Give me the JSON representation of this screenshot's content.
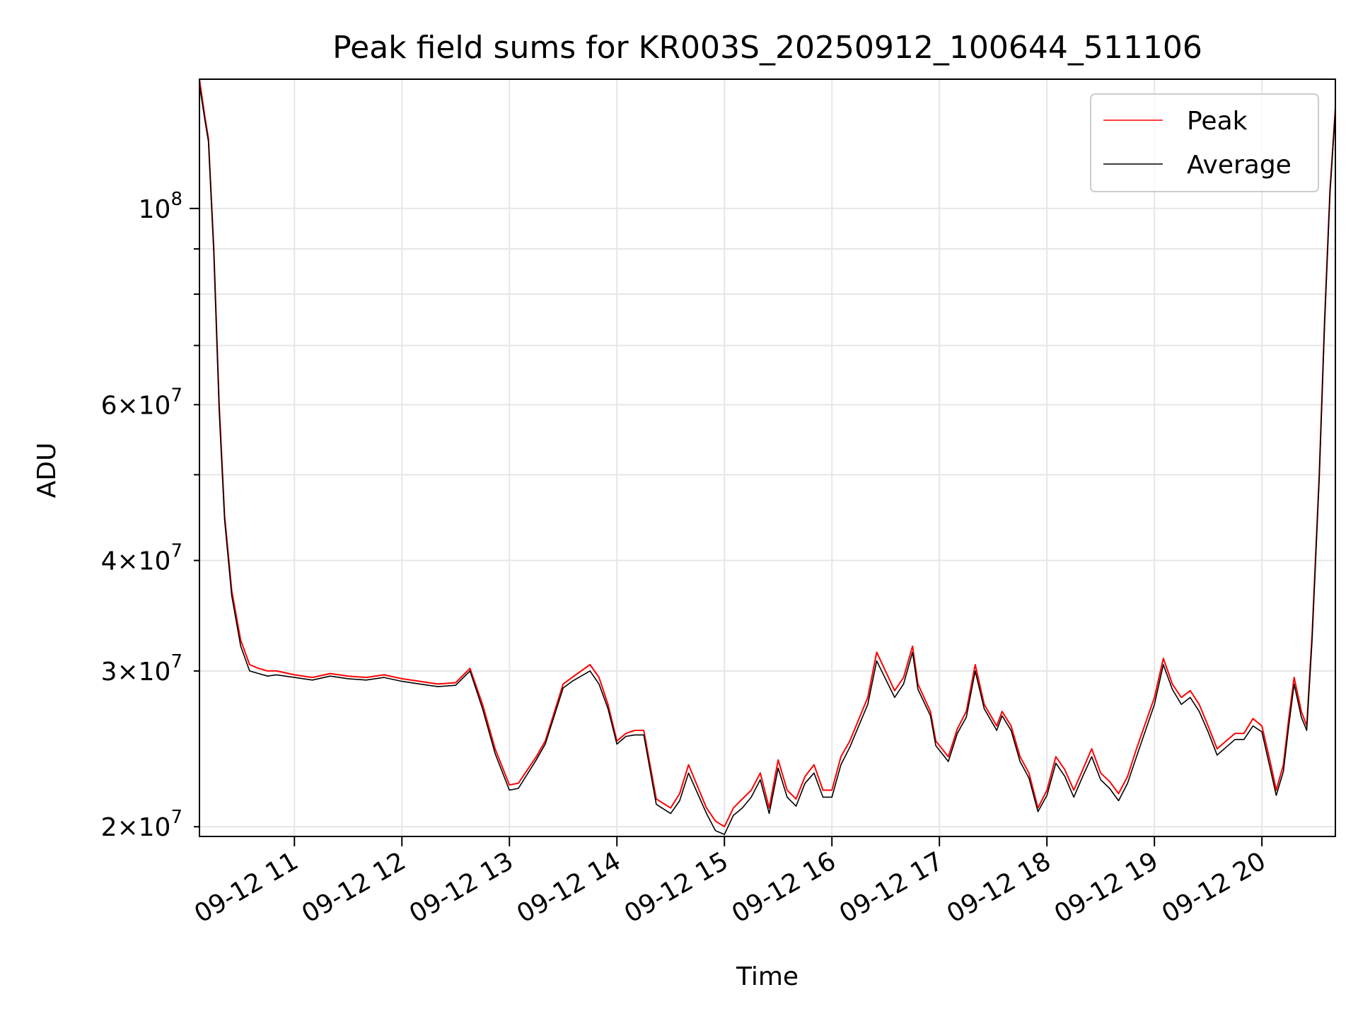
{
  "chart_data": {
    "type": "line",
    "title": "Peak field sums for KR003S_20250912_100644_511106",
    "xlabel": "Time",
    "ylabel": "ADU",
    "yscale": "log",
    "xlim": [
      "09-12 10:07",
      "09-12 20:41"
    ],
    "ylim": [
      19500000,
      140000000
    ],
    "grid": true,
    "legend_position": "top-right",
    "x_ticks": [
      {
        "label": "09-12 11",
        "x": "09-12 11:00"
      },
      {
        "label": "09-12 12",
        "x": "09-12 12:00"
      },
      {
        "label": "09-12 13",
        "x": "09-12 13:00"
      },
      {
        "label": "09-12 14",
        "x": "09-12 14:00"
      },
      {
        "label": "09-12 15",
        "x": "09-12 15:00"
      },
      {
        "label": "09-12 16",
        "x": "09-12 16:00"
      },
      {
        "label": "09-12 17",
        "x": "09-12 17:00"
      },
      {
        "label": "09-12 18",
        "x": "09-12 18:00"
      },
      {
        "label": "09-12 19",
        "x": "09-12 19:00"
      },
      {
        "label": "09-12 20",
        "x": "09-12 20:00"
      }
    ],
    "y_ticks_major": [
      {
        "base": "10",
        "exp": "8",
        "value": 100000000
      }
    ],
    "y_ticks_minor": [
      {
        "mant": "2",
        "base": "10",
        "exp": "7",
        "value": 20000000
      },
      {
        "mant": "3",
        "base": "10",
        "exp": "7",
        "value": 30000000
      },
      {
        "mant": "4",
        "base": "10",
        "exp": "7",
        "value": 40000000
      },
      {
        "mant": "6",
        "base": "10",
        "exp": "7",
        "value": 60000000
      }
    ],
    "y_ticks_minor_unlabeled": [
      50000000,
      70000000,
      80000000,
      90000000
    ],
    "series": [
      {
        "name": "Peak",
        "color": "#ff0000",
        "x": [
          "09-12 10:07",
          "09-12 10:10",
          "09-12 10:12",
          "09-12 10:15",
          "09-12 10:18",
          "09-12 10:21",
          "09-12 10:25",
          "09-12 10:30",
          "09-12 10:35",
          "09-12 10:40",
          "09-12 10:45",
          "09-12 10:50",
          "09-12 11:00",
          "09-12 11:10",
          "09-12 11:20",
          "09-12 11:30",
          "09-12 11:40",
          "09-12 11:50",
          "09-12 12:00",
          "09-12 12:10",
          "09-12 12:20",
          "09-12 12:30",
          "09-12 12:38",
          "09-12 12:45",
          "09-12 12:52",
          "09-12 13:00",
          "09-12 13:05",
          "09-12 13:15",
          "09-12 13:20",
          "09-12 13:30",
          "09-12 13:35",
          "09-12 13:45",
          "09-12 13:50",
          "09-12 13:55",
          "09-12 14:00",
          "09-12 14:05",
          "09-12 14:10",
          "09-12 14:15",
          "09-12 14:22",
          "09-12 14:30",
          "09-12 14:35",
          "09-12 14:40",
          "09-12 14:50",
          "09-12 14:55",
          "09-12 15:00",
          "09-12 15:05",
          "09-12 15:10",
          "09-12 15:15",
          "09-12 15:20",
          "09-12 15:25",
          "09-12 15:30",
          "09-12 15:35",
          "09-12 15:40",
          "09-12 15:45",
          "09-12 15:50",
          "09-12 15:55",
          "09-12 16:00",
          "09-12 16:05",
          "09-12 16:10",
          "09-12 16:20",
          "09-12 16:25",
          "09-12 16:35",
          "09-12 16:40",
          "09-12 16:45",
          "09-12 16:48",
          "09-12 16:55",
          "09-12 16:58",
          "09-12 17:05",
          "09-12 17:10",
          "09-12 17:15",
          "09-12 17:20",
          "09-12 17:25",
          "09-12 17:32",
          "09-12 17:35",
          "09-12 17:40",
          "09-12 17:45",
          "09-12 17:50",
          "09-12 17:55",
          "09-12 18:00",
          "09-12 18:05",
          "09-12 18:10",
          "09-12 18:15",
          "09-12 18:20",
          "09-12 18:25",
          "09-12 18:30",
          "09-12 18:35",
          "09-12 18:40",
          "09-12 18:45",
          "09-12 18:50",
          "09-12 19:00",
          "09-12 19:05",
          "09-12 19:10",
          "09-12 19:15",
          "09-12 19:20",
          "09-12 19:25",
          "09-12 19:30",
          "09-12 19:35",
          "09-12 19:40",
          "09-12 19:45",
          "09-12 19:50",
          "09-12 19:55",
          "09-12 20:00",
          "09-12 20:05",
          "09-12 20:08",
          "09-12 20:12",
          "09-12 20:15",
          "09-12 20:18",
          "09-12 20:22",
          "09-12 20:25",
          "09-12 20:28",
          "09-12 20:32",
          "09-12 20:35",
          "09-12 20:38",
          "09-12 20:41"
        ],
        "y": [
          140000000,
          127000000,
          120000000,
          90000000,
          60000000,
          45000000,
          37000000,
          32500000,
          30500000,
          30200000,
          30000000,
          30000000,
          29700000,
          29500000,
          29800000,
          29600000,
          29500000,
          29700000,
          29400000,
          29200000,
          29000000,
          29100000,
          30200000,
          27500000,
          24500000,
          22300000,
          22400000,
          24000000,
          25000000,
          29000000,
          29500000,
          30500000,
          29500000,
          27500000,
          25000000,
          25500000,
          25700000,
          25700000,
          21500000,
          21000000,
          21800000,
          23500000,
          21000000,
          20300000,
          20000000,
          21000000,
          21500000,
          22000000,
          23000000,
          21000000,
          23800000,
          22000000,
          21500000,
          22800000,
          23500000,
          22000000,
          22000000,
          24000000,
          25000000,
          28000000,
          31500000,
          28500000,
          29500000,
          32000000,
          29000000,
          27000000,
          25000000,
          24000000,
          25800000,
          27000000,
          30500000,
          27500000,
          26000000,
          27000000,
          26000000,
          24000000,
          23000000,
          21000000,
          22000000,
          24000000,
          23200000,
          22000000,
          23200000,
          24500000,
          23000000,
          22500000,
          21800000,
          22800000,
          24500000,
          28000000,
          31000000,
          29000000,
          28000000,
          28500000,
          27500000,
          26000000,
          24500000,
          25000000,
          25500000,
          25500000,
          26500000,
          26000000,
          23500000,
          22000000,
          23500000,
          26500000,
          29500000,
          27000000,
          26000000,
          33000000,
          50000000,
          75000000,
          105000000,
          130000000
        ]
      },
      {
        "name": "Average",
        "color": "#000000",
        "x": [
          "09-12 10:07",
          "09-12 10:10",
          "09-12 10:12",
          "09-12 10:15",
          "09-12 10:18",
          "09-12 10:21",
          "09-12 10:25",
          "09-12 10:30",
          "09-12 10:35",
          "09-12 10:40",
          "09-12 10:45",
          "09-12 10:50",
          "09-12 11:00",
          "09-12 11:10",
          "09-12 11:20",
          "09-12 11:30",
          "09-12 11:40",
          "09-12 11:50",
          "09-12 12:00",
          "09-12 12:10",
          "09-12 12:20",
          "09-12 12:30",
          "09-12 12:38",
          "09-12 12:45",
          "09-12 12:52",
          "09-12 13:00",
          "09-12 13:05",
          "09-12 13:15",
          "09-12 13:20",
          "09-12 13:30",
          "09-12 13:35",
          "09-12 13:45",
          "09-12 13:50",
          "09-12 13:55",
          "09-12 14:00",
          "09-12 14:05",
          "09-12 14:10",
          "09-12 14:15",
          "09-12 14:22",
          "09-12 14:30",
          "09-12 14:35",
          "09-12 14:40",
          "09-12 14:50",
          "09-12 14:55",
          "09-12 15:00",
          "09-12 15:05",
          "09-12 15:10",
          "09-12 15:15",
          "09-12 15:20",
          "09-12 15:25",
          "09-12 15:30",
          "09-12 15:35",
          "09-12 15:40",
          "09-12 15:45",
          "09-12 15:50",
          "09-12 15:55",
          "09-12 16:00",
          "09-12 16:05",
          "09-12 16:10",
          "09-12 16:20",
          "09-12 16:25",
          "09-12 16:35",
          "09-12 16:40",
          "09-12 16:45",
          "09-12 16:48",
          "09-12 16:55",
          "09-12 16:58",
          "09-12 17:05",
          "09-12 17:10",
          "09-12 17:15",
          "09-12 17:20",
          "09-12 17:25",
          "09-12 17:32",
          "09-12 17:35",
          "09-12 17:40",
          "09-12 17:45",
          "09-12 17:50",
          "09-12 17:55",
          "09-12 18:00",
          "09-12 18:05",
          "09-12 18:10",
          "09-12 18:15",
          "09-12 18:20",
          "09-12 18:25",
          "09-12 18:30",
          "09-12 18:35",
          "09-12 18:40",
          "09-12 18:45",
          "09-12 18:50",
          "09-12 19:00",
          "09-12 19:05",
          "09-12 19:10",
          "09-12 19:15",
          "09-12 19:20",
          "09-12 19:25",
          "09-12 19:30",
          "09-12 19:35",
          "09-12 19:40",
          "09-12 19:45",
          "09-12 19:50",
          "09-12 19:55",
          "09-12 20:00",
          "09-12 20:05",
          "09-12 20:08",
          "09-12 20:12",
          "09-12 20:15",
          "09-12 20:18",
          "09-12 20:22",
          "09-12 20:25",
          "09-12 20:28",
          "09-12 20:32",
          "09-12 20:35",
          "09-12 20:38",
          "09-12 20:41"
        ],
        "y": [
          138000000,
          126000000,
          119000000,
          89000000,
          59000000,
          44500000,
          36500000,
          32000000,
          30000000,
          29800000,
          29600000,
          29700000,
          29500000,
          29300000,
          29600000,
          29400000,
          29300000,
          29500000,
          29200000,
          29000000,
          28800000,
          28900000,
          30000000,
          27200000,
          24200000,
          22000000,
          22100000,
          23800000,
          24800000,
          28700000,
          29200000,
          30000000,
          29000000,
          27200000,
          24800000,
          25300000,
          25400000,
          25400000,
          21200000,
          20700000,
          21400000,
          23000000,
          20700000,
          19800000,
          19600000,
          20600000,
          21000000,
          21600000,
          22600000,
          20700000,
          23300000,
          21600000,
          21100000,
          22400000,
          23000000,
          21600000,
          21600000,
          23500000,
          24600000,
          27500000,
          30800000,
          28000000,
          29000000,
          31500000,
          28600000,
          26700000,
          24700000,
          23700000,
          25500000,
          26600000,
          30000000,
          27200000,
          25700000,
          26700000,
          25700000,
          23700000,
          22700000,
          20800000,
          21700000,
          23600000,
          22800000,
          21600000,
          22800000,
          24000000,
          22600000,
          22100000,
          21400000,
          22400000,
          24000000,
          27500000,
          30500000,
          28600000,
          27500000,
          28000000,
          27000000,
          25600000,
          24100000,
          24600000,
          25100000,
          25100000,
          26000000,
          25600000,
          23100000,
          21700000,
          23100000,
          26000000,
          29000000,
          26600000,
          25700000,
          32500000,
          49500000,
          74000000,
          104000000,
          129000000
        ]
      }
    ]
  }
}
